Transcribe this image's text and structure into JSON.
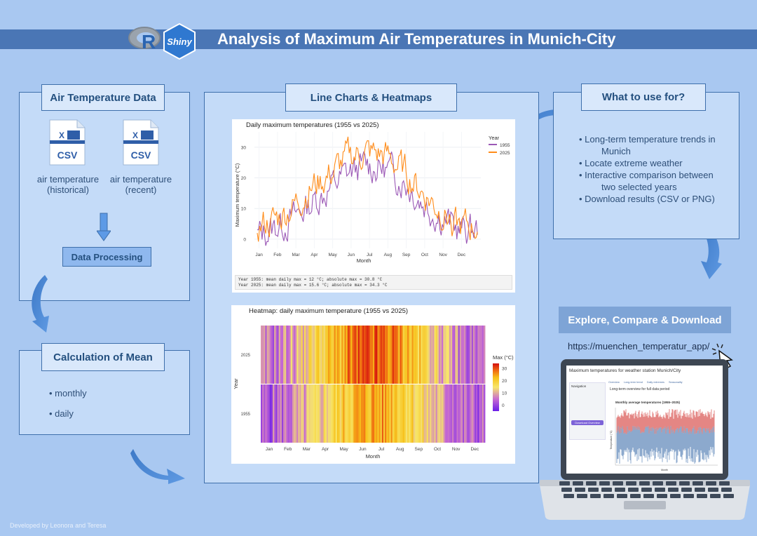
{
  "header": {
    "title": "Analysis of Maximum Air Temperatures in Munich-City",
    "logo_r": "R",
    "logo_shiny": "Shiny"
  },
  "data_panel": {
    "heading": "Air Temperature Data",
    "file1_badge": "CSV",
    "file1_label_line1": "air temperature",
    "file1_label_line2": "(historical)",
    "file2_badge": "CSV",
    "file2_label_line1": "air temperature",
    "file2_label_line2": "(recent)",
    "processing": "Data Processing"
  },
  "mean_panel": {
    "heading": "Calculation of Mean",
    "items": [
      "• monthly",
      "• daily"
    ]
  },
  "charts_panel": {
    "heading": "Line Charts & Heatmaps"
  },
  "use_panel": {
    "heading": "What to use for?",
    "b1": "• Long-term temperature trends in",
    "b1b": "Munich",
    "b2": "• Locate extreme weather",
    "b3": "• Interactive comparison between",
    "b3b": "two selected years",
    "b4": "• Download results (CSV or PNG)"
  },
  "explore": {
    "heading": "Explore, Compare & Download",
    "url": "https://muenchen_temperatur_app/"
  },
  "app_screen": {
    "title": "Maximum temperatures for weather station Munich/City",
    "tabs": [
      "Overview",
      "Long-term trend",
      "Daily extremes",
      "Seasonality"
    ],
    "heading": "Long-term overview for full data period",
    "subheading": "Monthly average temperatures (1955–2025)",
    "sidebar_title": "Navigation",
    "sidebar_btn": "Download Overview",
    "y_label": "Temperature (°C)",
    "x_label": "Month"
  },
  "footer": {
    "credit": "Developed by Leonora and Teresa"
  },
  "colors": {
    "background": "#a9c8f1",
    "title_bar": "#4a76b5",
    "panel": "#c4dbf8",
    "border": "#3e6fab",
    "series_1955": "#9b59b6",
    "series_2025": "#ff8c1a"
  },
  "chart_data": [
    {
      "type": "line",
      "title": "Daily maximum temperatures (1955 vs 2025)",
      "xlabel": "Month",
      "ylabel": "Maximum temperature (°C)",
      "legend_title": "Year",
      "legend_position": "right",
      "x_ticks": [
        "Jan",
        "Feb",
        "Mar",
        "Apr",
        "May",
        "Jun",
        "Jul",
        "Aug",
        "Sep",
        "Oct",
        "Nov",
        "Dec"
      ],
      "y_ticks": [
        0,
        10,
        20,
        30
      ],
      "ylim": [
        -3,
        35
      ],
      "grid": true,
      "series": [
        {
          "name": "1955",
          "color": "#9b59b6",
          "monthly_mean": [
            1,
            4,
            7,
            12,
            17,
            22,
            24,
            23,
            19,
            12,
            7,
            3
          ]
        },
        {
          "name": "2025",
          "color": "#ff8c1a",
          "monthly_mean": [
            4,
            6,
            11,
            17,
            21,
            27,
            28,
            27,
            22,
            15,
            9,
            4
          ]
        }
      ],
      "summary_lines": [
        "Year 1955: mean daily max = 12 °C; absolute max = 30.8 °C",
        "Year 2025: mean daily max = 15.6 °C; absolute max = 34.3 °C"
      ]
    },
    {
      "type": "heatmap",
      "title": "Heatmap: daily maximum temperature (1955 vs 2025)",
      "xlabel": "Month",
      "ylabel": "Year",
      "y_categories": [
        "2025",
        "1955"
      ],
      "x_ticks": [
        "Jan",
        "Feb",
        "Mar",
        "Apr",
        "May",
        "Jun",
        "Jul",
        "Aug",
        "Sep",
        "Oct",
        "Nov",
        "Dec"
      ],
      "colorbar_title": "Max (°C)",
      "colorbar_ticks": [
        0,
        10,
        20,
        30
      ],
      "zlim": [
        -5,
        34
      ],
      "monthly_mean": {
        "2025": [
          4,
          6,
          11,
          17,
          21,
          27,
          28,
          27,
          22,
          15,
          9,
          4
        ],
        "1955": [
          1,
          4,
          7,
          12,
          17,
          22,
          24,
          23,
          19,
          12,
          7,
          3
        ]
      }
    }
  ]
}
